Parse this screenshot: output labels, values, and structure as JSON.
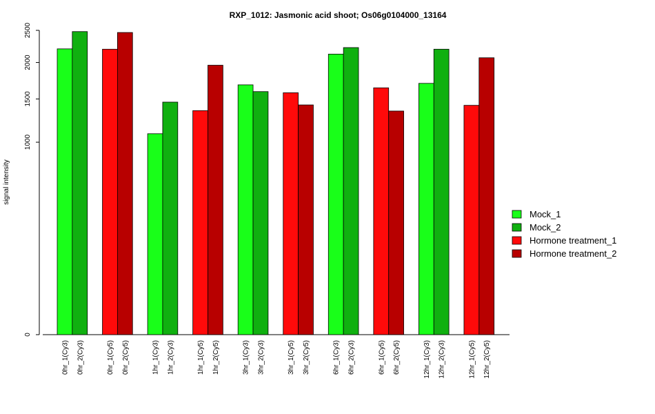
{
  "chart_data": {
    "type": "bar",
    "title": "RXP_1012: Jasmonic acid shoot; Os06g0104000_13164",
    "xlabel": "",
    "ylabel": "signal intensity",
    "yscale": "sqrt",
    "ylim": [
      0,
      2500
    ],
    "yticks": [
      0,
      1000,
      1500,
      2000,
      2500
    ],
    "grid": false,
    "legend_position": "right",
    "legend": [
      {
        "name": "Mock_1",
        "color": "#19FF19"
      },
      {
        "name": "Mock_2",
        "color": "#10B010"
      },
      {
        "name": "Hormone treatment_1",
        "color": "#FF0A0A"
      },
      {
        "name": "Hormone treatment_2",
        "color": "#B80000"
      }
    ],
    "bars": [
      {
        "label": "0hr_1(Cy3)",
        "value": 2205,
        "color": "#19FF19"
      },
      {
        "label": "0hr_2(Cy3)",
        "value": 2480,
        "color": "#10B010"
      },
      {
        "label": "0hr_1(Cy5)",
        "value": 2200,
        "color": "#FF0A0A"
      },
      {
        "label": "0hr_2(Cy5)",
        "value": 2465,
        "color": "#B80000"
      },
      {
        "label": "1hr_1(Cy3)",
        "value": 1090,
        "color": "#19FF19"
      },
      {
        "label": "1hr_2(Cy3)",
        "value": 1460,
        "color": "#10B010"
      },
      {
        "label": "1hr_1(Cy5)",
        "value": 1355,
        "color": "#FF0A0A"
      },
      {
        "label": "1hr_2(Cy5)",
        "value": 1960,
        "color": "#B80000"
      },
      {
        "label": "3hr_1(Cy3)",
        "value": 1685,
        "color": "#19FF19"
      },
      {
        "label": "3hr_2(Cy3)",
        "value": 1595,
        "color": "#10B010"
      },
      {
        "label": "3hr_1(Cy5)",
        "value": 1580,
        "color": "#FF0A0A"
      },
      {
        "label": "3hr_2(Cy5)",
        "value": 1425,
        "color": "#B80000"
      },
      {
        "label": "6hr_1(Cy3)",
        "value": 2125,
        "color": "#19FF19"
      },
      {
        "label": "6hr_2(Cy3)",
        "value": 2225,
        "color": "#10B010"
      },
      {
        "label": "6hr_1(Cy5)",
        "value": 1645,
        "color": "#FF0A0A"
      },
      {
        "label": "6hr_2(Cy5)",
        "value": 1350,
        "color": "#B80000"
      },
      {
        "label": "12hr_1(Cy3)",
        "value": 1705,
        "color": "#19FF19"
      },
      {
        "label": "12hr_2(Cy3)",
        "value": 2200,
        "color": "#10B010"
      },
      {
        "label": "12hr_1(Cy5)",
        "value": 1420,
        "color": "#FF0A0A"
      },
      {
        "label": "12hr_2(Cy5)",
        "value": 2070,
        "color": "#B80000"
      }
    ]
  }
}
